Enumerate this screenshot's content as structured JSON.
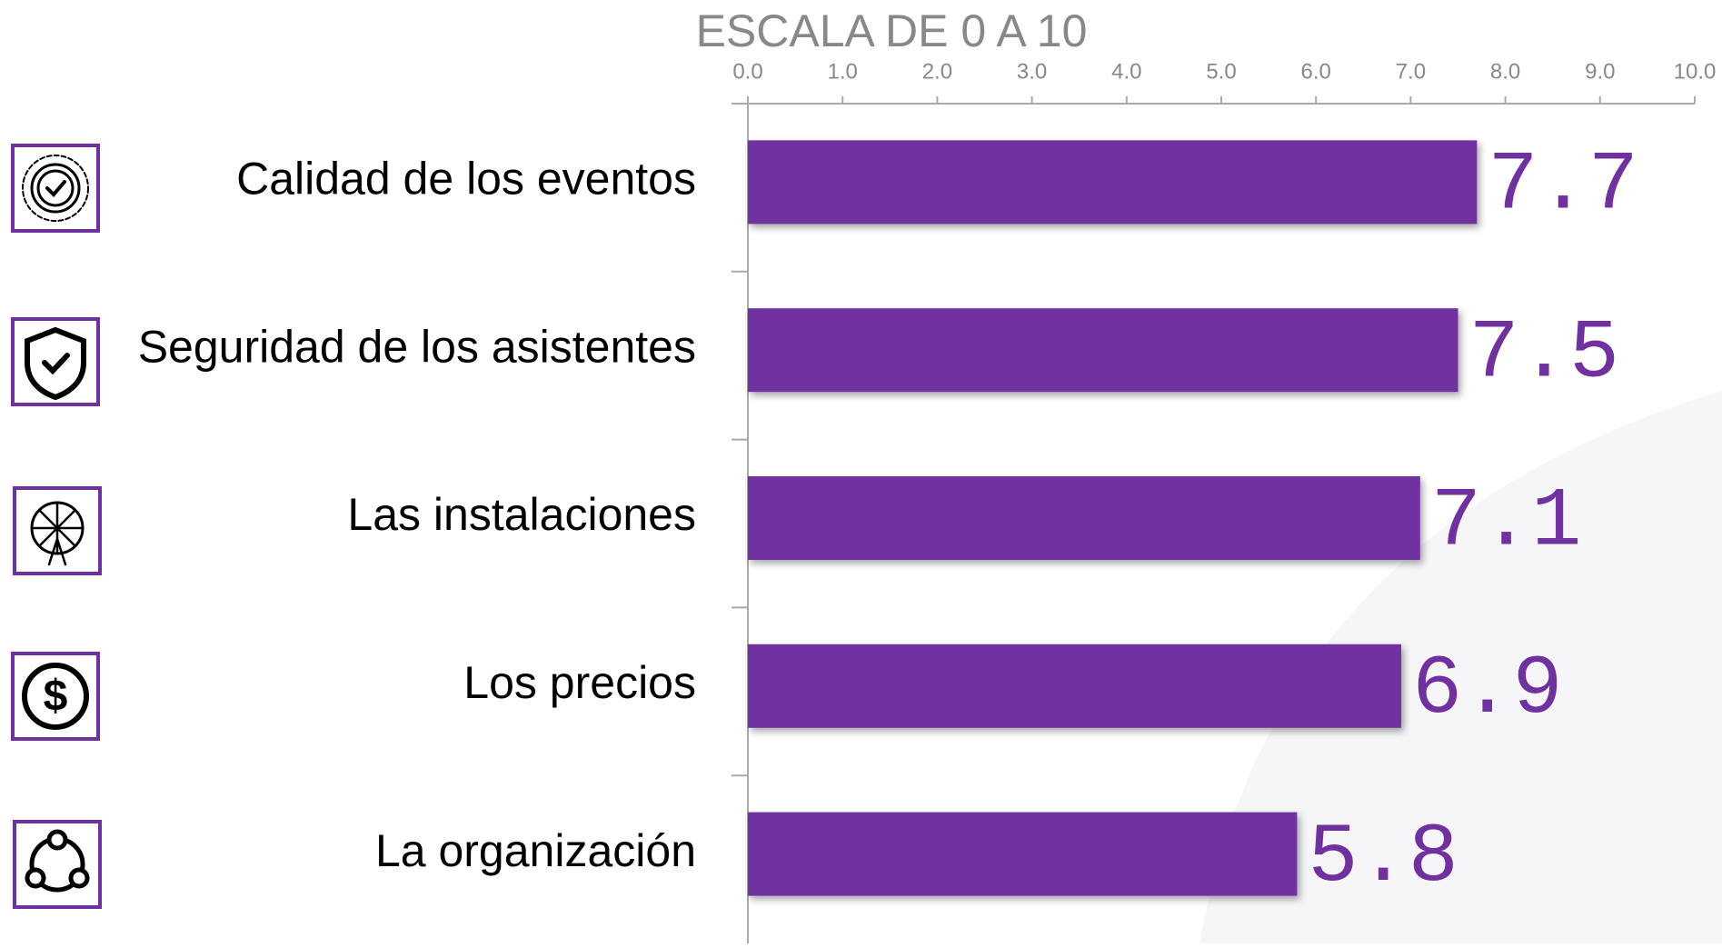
{
  "chart_data": {
    "type": "bar",
    "orientation": "horizontal",
    "title": "ESCALA DE 0 A 10",
    "categories": [
      "Calidad de los eventos",
      "Seguridad de los asistentes",
      "Las instalaciones",
      "Los precios",
      "La organización"
    ],
    "values": [
      7.7,
      7.5,
      7.1,
      6.9,
      5.8
    ],
    "color": "#7030a0",
    "xlim": [
      0,
      10
    ],
    "xticks": [
      {
        "value": 0,
        "label": "0.0"
      },
      {
        "value": 1,
        "label": "1.0"
      },
      {
        "value": 2,
        "label": "2.0"
      },
      {
        "value": 3,
        "label": "3.0"
      },
      {
        "value": 4,
        "label": "4.0"
      },
      {
        "value": 5,
        "label": "5.0"
      },
      {
        "value": 6,
        "label": "6.0"
      },
      {
        "value": 7,
        "label": "7.0"
      },
      {
        "value": 8,
        "label": "8.0"
      },
      {
        "value": 9,
        "label": "9.0"
      },
      {
        "value": 10,
        "label": "10.0"
      }
    ]
  }
}
